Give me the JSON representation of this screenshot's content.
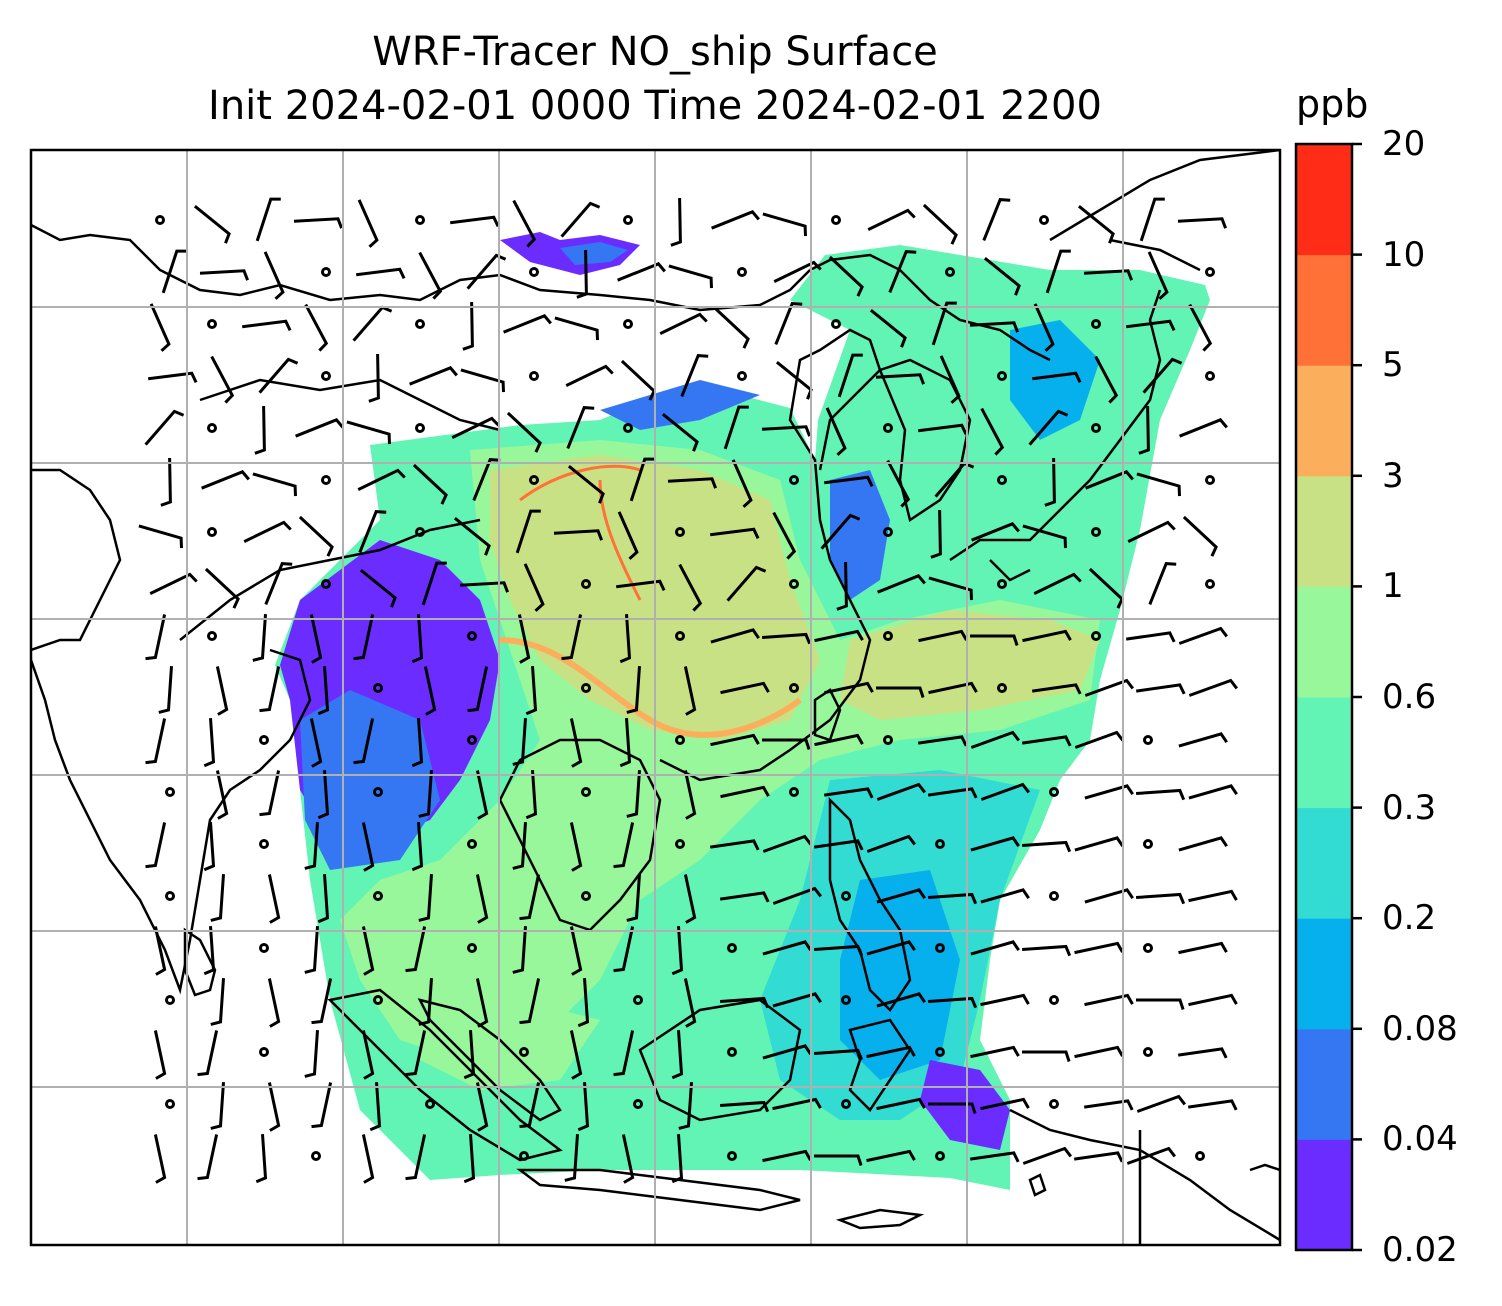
{
  "title": {
    "line1": "WRF-Tracer NO_ship Surface",
    "line2": "Init 2024-02-01 0000 Time 2024-02-01 2200"
  },
  "colorbar": {
    "unit": "ppb",
    "levels": [
      "0.02",
      "0.04",
      "0.08",
      "0.2",
      "0.3",
      "0.6",
      "1",
      "3",
      "5",
      "10",
      "20"
    ],
    "colors": [
      "#6a2cff",
      "#3577f2",
      "#06b0ec",
      "#33dcd2",
      "#62f4b4",
      "#98f79b",
      "#c9e185",
      "#fbaf5c",
      "#ff7137",
      "#ff2c17"
    ]
  },
  "map": {
    "field": "NO_ship",
    "level": "Surface",
    "grid": "on",
    "overlay": "wind barbs"
  }
}
